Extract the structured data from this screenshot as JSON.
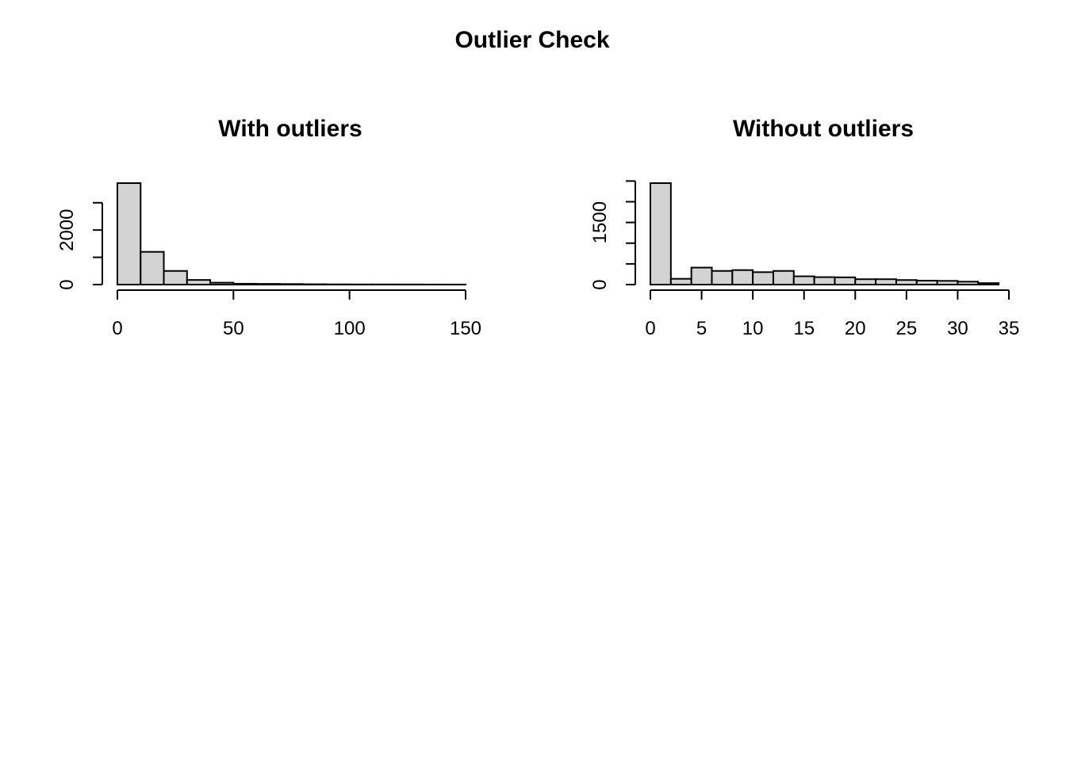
{
  "title": "Outlier Check",
  "chart_data": [
    {
      "type": "bar",
      "title": "With outliers",
      "xlabel": "",
      "ylabel": "",
      "bin_edges": [
        0,
        10,
        20,
        30,
        40,
        50,
        60,
        70,
        80,
        90,
        100,
        110,
        120,
        130,
        140,
        150
      ],
      "values": [
        3720,
        1200,
        500,
        170,
        70,
        30,
        25,
        20,
        12,
        8,
        6,
        5,
        4,
        3,
        2
      ],
      "xlim": [
        0,
        150
      ],
      "ylim": [
        0,
        3720
      ],
      "x_ticks": [
        0,
        50,
        100,
        150
      ],
      "y_ticks": [
        0,
        1000,
        2000,
        3000
      ],
      "y_tick_labels": [
        "0",
        "",
        "2000",
        ""
      ],
      "grid": false
    },
    {
      "type": "bar",
      "title": "Without outliers",
      "xlabel": "",
      "ylabel": "",
      "bin_edges": [
        0,
        2,
        4,
        6,
        8,
        10,
        12,
        14,
        16,
        18,
        20,
        22,
        24,
        26,
        28,
        30,
        32,
        34
      ],
      "values": [
        2450,
        140,
        410,
        330,
        350,
        300,
        330,
        200,
        180,
        175,
        130,
        130,
        110,
        95,
        90,
        70,
        35
      ],
      "xlim": [
        0,
        35
      ],
      "ylim": [
        0,
        2450
      ],
      "x_ticks": [
        0,
        5,
        10,
        15,
        20,
        25,
        30,
        35
      ],
      "y_ticks": [
        0,
        500,
        1000,
        1500,
        2000,
        2500
      ],
      "y_tick_labels": [
        "0",
        "",
        "",
        "1500",
        "",
        ""
      ],
      "grid": false
    }
  ]
}
